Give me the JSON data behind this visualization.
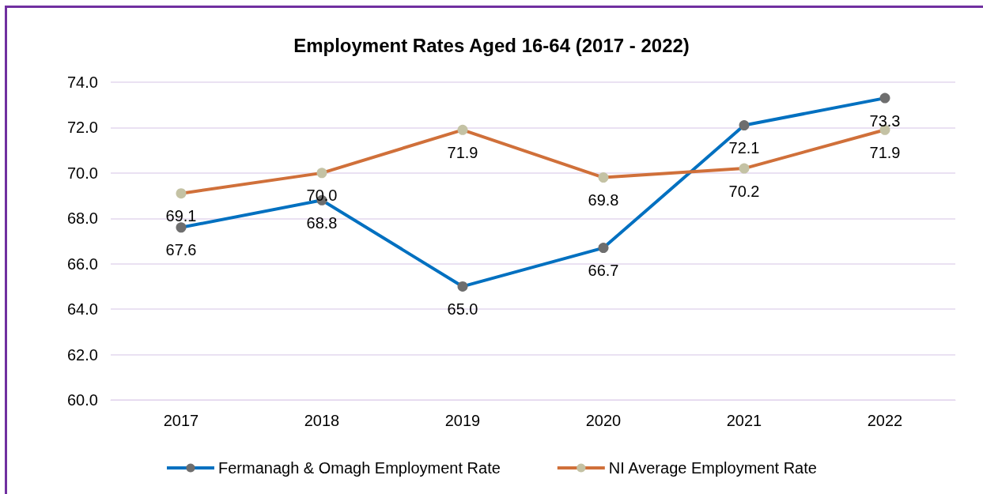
{
  "chart_data": {
    "type": "line",
    "title": "Employment Rates Aged 16-64 (2017 - 2022)",
    "categories": [
      "2017",
      "2018",
      "2019",
      "2020",
      "2021",
      "2022"
    ],
    "series": [
      {
        "name": "Fermanagh & Omagh Employment Rate",
        "color": "#0070c0",
        "colors": [
          "#6e6e6e",
          "#6e6e6e",
          "#6e6e6e",
          "#6e6e6e",
          "#6e6e6e",
          "#6e6e6e"
        ],
        "values": [
          67.6,
          68.8,
          65.0,
          66.7,
          72.1,
          73.3
        ],
        "value_labels": [
          "67.6",
          "68.8",
          "65.0",
          "66.7",
          "72.1",
          "73.3"
        ]
      },
      {
        "name": "NI Average Employment Rate",
        "color": "#d0703a",
        "colors": [
          "#c4c2a4",
          "#c4c2a4",
          "#c4c2a4",
          "#c4c2a4",
          "#c4c2a4",
          "#c4c2a4"
        ],
        "values": [
          69.1,
          70.0,
          71.9,
          69.8,
          70.2,
          71.9
        ],
        "value_labels": [
          "69.1",
          "70.0",
          "71.9",
          "69.8",
          "70.2",
          "71.9"
        ]
      }
    ],
    "ylim": [
      60,
      74
    ],
    "yticks": [
      {
        "value": 60,
        "label": "60.0"
      },
      {
        "value": 62,
        "label": "62.0"
      },
      {
        "value": 64,
        "label": "64.0"
      },
      {
        "value": 66,
        "label": "66.0"
      },
      {
        "value": 68,
        "label": "68.0"
      },
      {
        "value": 70,
        "label": "70.0"
      },
      {
        "value": 72,
        "label": "72.0"
      },
      {
        "value": 74,
        "label": "74.0"
      }
    ],
    "grid": "y",
    "legend": "bottom",
    "marker": "circle",
    "line_style": "solid"
  }
}
